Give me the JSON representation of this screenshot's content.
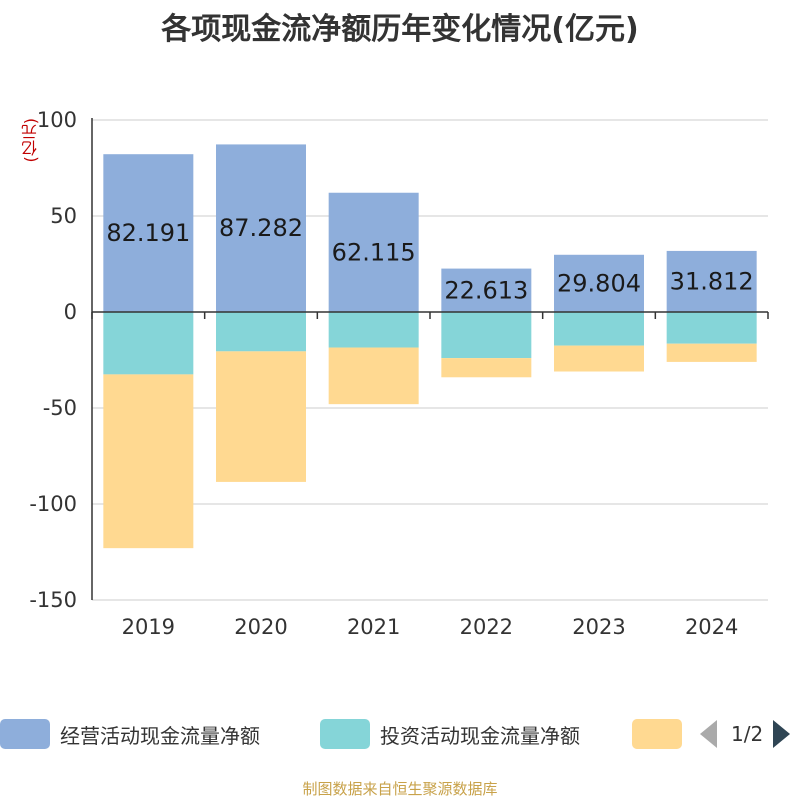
{
  "chart_data": {
    "type": "bar",
    "stacked": true,
    "title": "各项现金流净额历年变化情况(亿元)",
    "ylabel": "(亿元)",
    "xlabel": "",
    "ylim": [
      -150,
      100
    ],
    "yticks": [
      100,
      50,
      0,
      -50,
      -100,
      -150
    ],
    "categories": [
      "2019",
      "2020",
      "2021",
      "2022",
      "2023",
      "2024"
    ],
    "series": [
      {
        "name": "经营活动现金流量净额",
        "color": "#8eaedb",
        "values": [
          82.191,
          87.282,
          62.115,
          22.613,
          29.804,
          31.812
        ],
        "labels": [
          "82.191",
          "87.282",
          "62.115",
          "22.613",
          "29.804",
          "31.812"
        ]
      },
      {
        "name": "投资活动现金流量净额",
        "color": "#85d5d8",
        "values": [
          -32.5,
          -20.5,
          -18.5,
          -24.0,
          -17.5,
          -16.5
        ]
      },
      {
        "name": "",
        "color": "#ffd991",
        "values": [
          -90.5,
          -68.0,
          -29.5,
          -10.0,
          -13.5,
          -9.5
        ]
      }
    ],
    "legend_position": "bottom",
    "grid": true
  },
  "legend": {
    "page": "1/2"
  },
  "source": "制图数据来自恒生聚源数据库"
}
